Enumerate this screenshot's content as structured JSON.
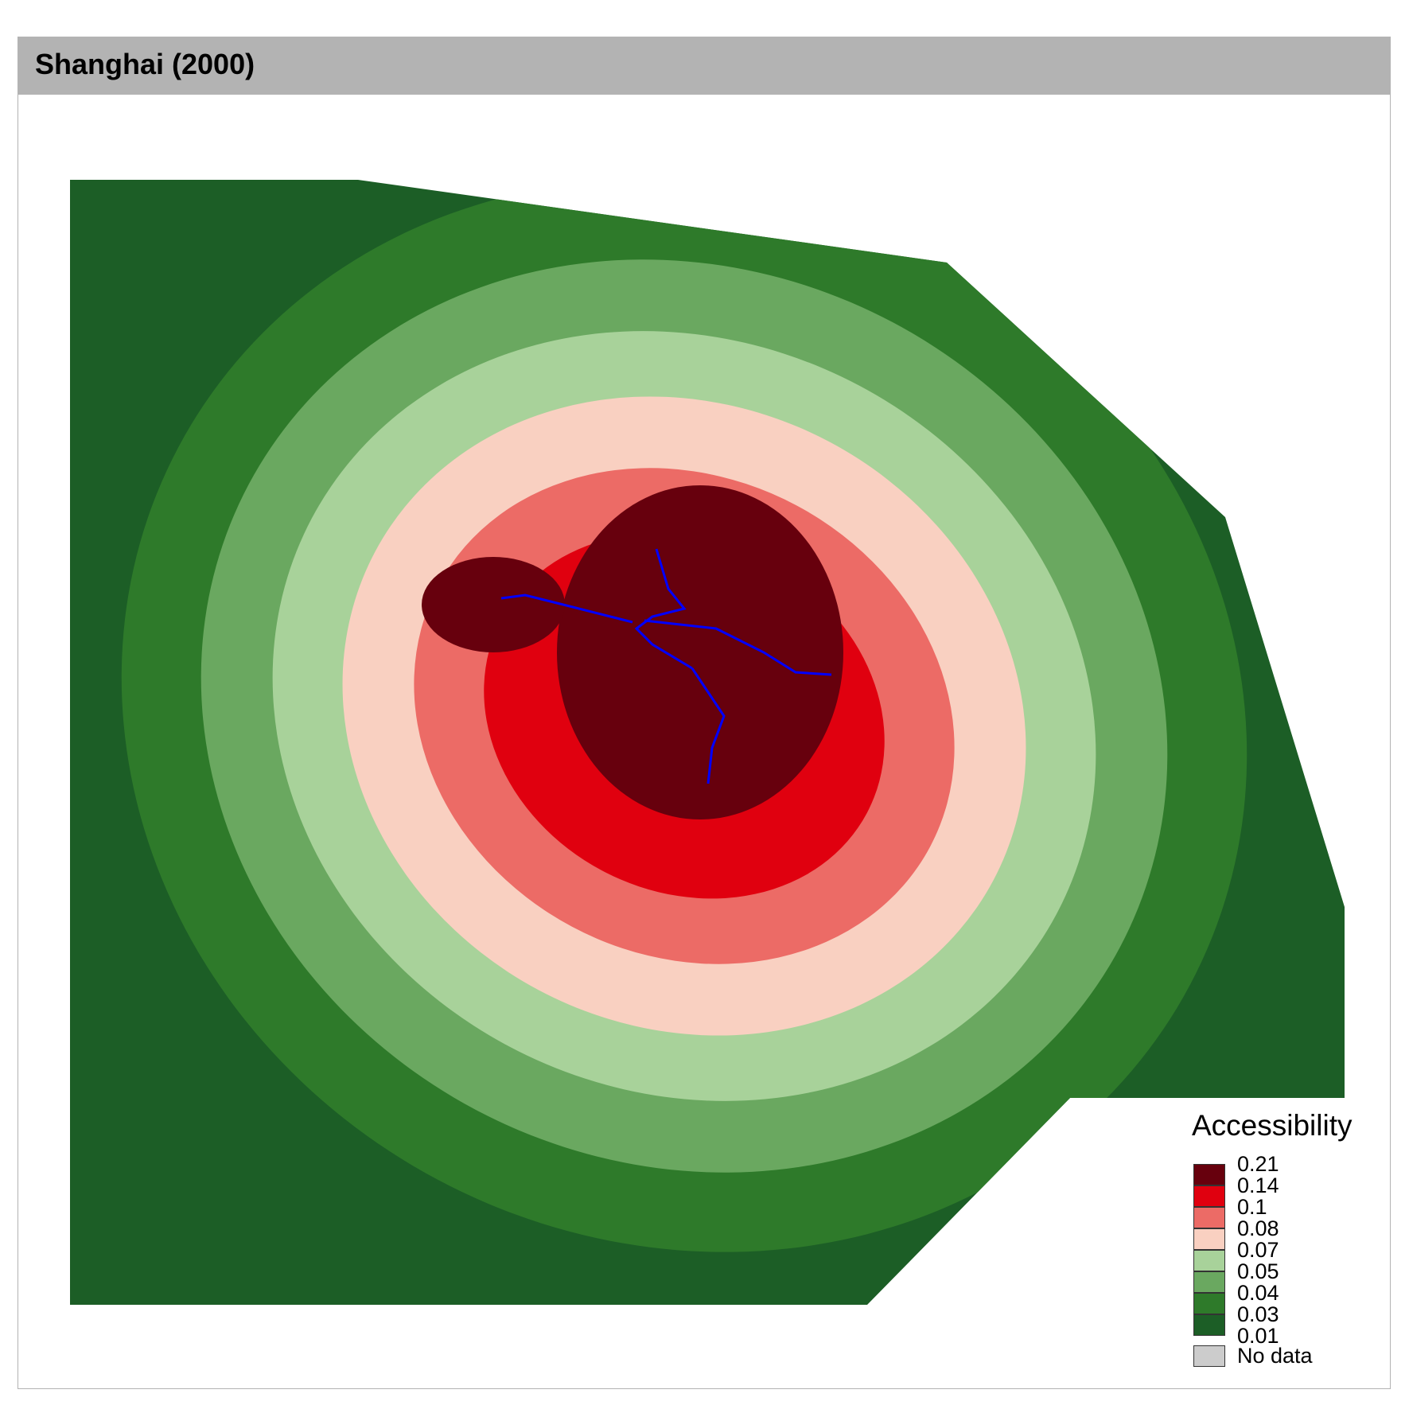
{
  "title": "Shanghai (2000)",
  "legend": {
    "title": "Accessibility",
    "breaks": [
      "0.21",
      "0.14",
      "0.1",
      "0.08",
      "0.07",
      "0.05",
      "0.04",
      "0.03",
      "0.01"
    ],
    "classes": [
      {
        "color": "#67000d"
      },
      {
        "color": "#e0000f"
      },
      {
        "color": "#ec6b66"
      },
      {
        "color": "#f9d0c1"
      },
      {
        "color": "#a8d29a"
      },
      {
        "color": "#6aa860"
      },
      {
        "color": "#2e7a2a"
      },
      {
        "color": "#1c5e26"
      }
    ],
    "no_data_label": "No data",
    "no_data_color": "#cccccc"
  },
  "map_style": {
    "background": "#ffffff",
    "metro_line_color": "#0000ff"
  }
}
